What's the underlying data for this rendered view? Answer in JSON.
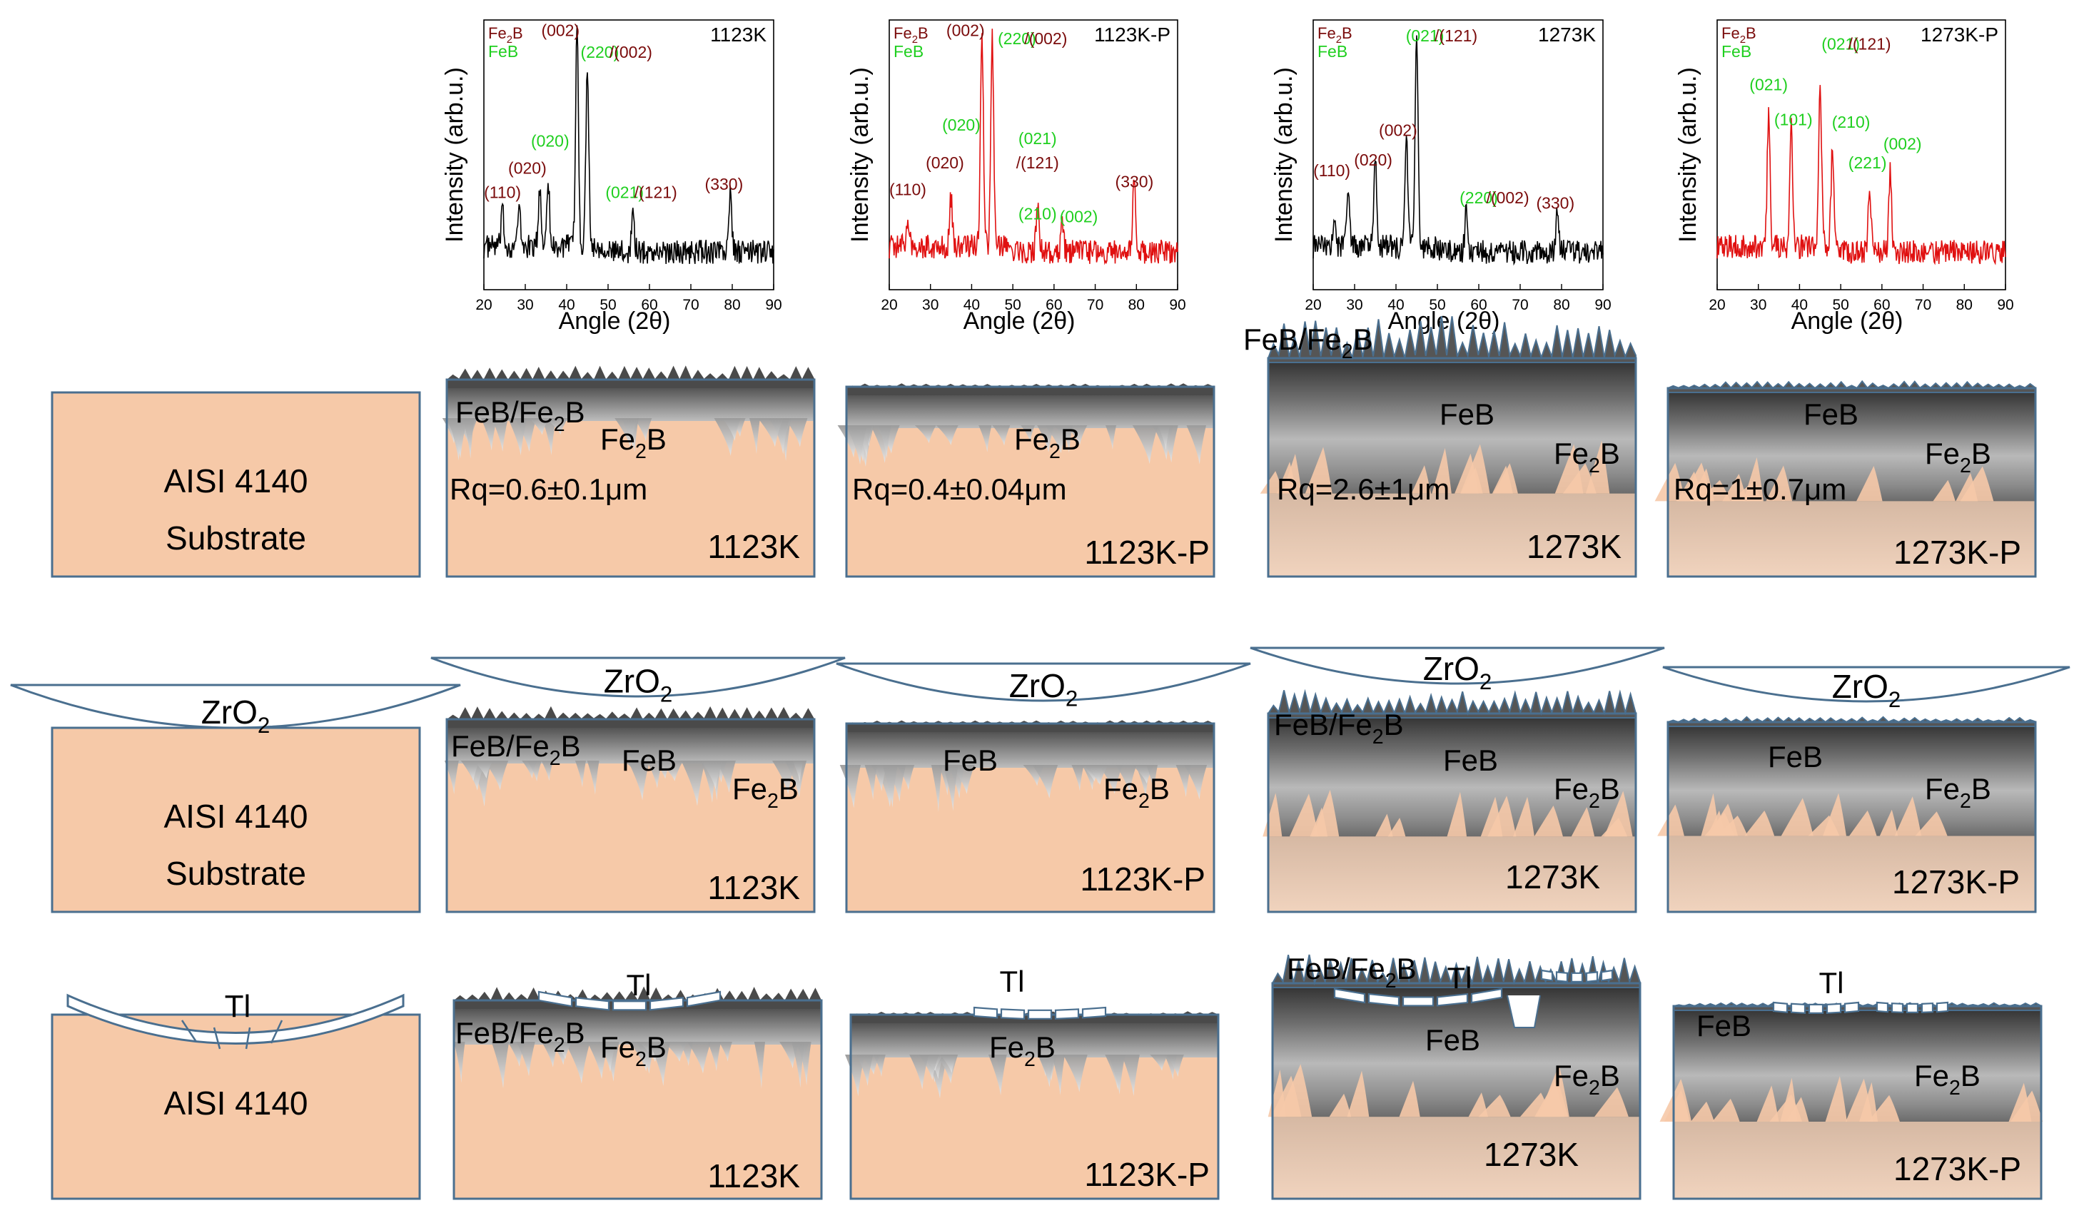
{
  "xrd": {
    "axis_title_y": "Intensity (arb.u.)",
    "axis_title_x": "Angle (2θ)",
    "x_ticks": [
      "20",
      "30",
      "40",
      "50",
      "60",
      "70",
      "80",
      "90"
    ],
    "legend": [
      "Fe₂B",
      "FeB"
    ],
    "colors": {
      "fe2b": "#7a0b0b",
      "feb": "#1fcf1f",
      "black_trace": "#000000",
      "red_trace": "#e01010"
    },
    "panels": [
      {
        "tag": "1123K",
        "trace_color": "#000000",
        "labels": [
          {
            "t": "(110)",
            "c": "fe2b",
            "a": 24.5,
            "yf": 0.66
          },
          {
            "t": "(020)",
            "c": "fe2b",
            "a": 30.5,
            "yf": 0.57
          },
          {
            "t": "(020)",
            "c": "feb",
            "a": 36.0,
            "yf": 0.47
          },
          {
            "t": "(002)",
            "c": "fe2b",
            "a": 38.5,
            "yf": 0.06
          },
          {
            "t": "(220)",
            "c": "feb",
            "a": 48.0,
            "yf": 0.14
          },
          {
            "t": "/(002)",
            "c": "fe2b",
            "a": 55.5,
            "yf": 0.14
          },
          {
            "t": "(021)",
            "c": "feb",
            "a": 54.0,
            "yf": 0.66
          },
          {
            "t": "/(121)",
            "c": "fe2b",
            "a": 61.5,
            "yf": 0.66
          },
          {
            "t": "(330)",
            "c": "fe2b",
            "a": 78.0,
            "yf": 0.63
          }
        ]
      },
      {
        "tag": "1123K-P",
        "trace_color": "#e01010",
        "labels": [
          {
            "t": "(110)",
            "c": "fe2b",
            "a": 24.5,
            "yf": 0.65
          },
          {
            "t": "(020)",
            "c": "fe2b",
            "a": 33.5,
            "yf": 0.55
          },
          {
            "t": "(020)",
            "c": "feb",
            "a": 37.5,
            "yf": 0.41
          },
          {
            "t": "(002)",
            "c": "fe2b",
            "a": 38.5,
            "yf": 0.06
          },
          {
            "t": "(220)",
            "c": "feb",
            "a": 51.0,
            "yf": 0.09
          },
          {
            "t": "/(002)",
            "c": "fe2b",
            "a": 58.0,
            "yf": 0.09
          },
          {
            "t": "(021)",
            "c": "feb",
            "a": 56.0,
            "yf": 0.46
          },
          {
            "t": "/(121)",
            "c": "fe2b",
            "a": 56.0,
            "yf": 0.55
          },
          {
            "t": "(210)",
            "c": "feb",
            "a": 56.0,
            "yf": 0.74
          },
          {
            "t": "(002)",
            "c": "feb",
            "a": 66.0,
            "yf": 0.75
          },
          {
            "t": "(330)",
            "c": "fe2b",
            "a": 79.5,
            "yf": 0.62
          }
        ]
      },
      {
        "tag": "1273K",
        "trace_color": "#000000",
        "labels": [
          {
            "t": "(110)",
            "c": "fe2b",
            "a": 24.5,
            "yf": 0.58
          },
          {
            "t": "(020)",
            "c": "fe2b",
            "a": 34.5,
            "yf": 0.54
          },
          {
            "t": "(002)",
            "c": "fe2b",
            "a": 40.5,
            "yf": 0.43
          },
          {
            "t": "(021)",
            "c": "feb",
            "a": 47.0,
            "yf": 0.08
          },
          {
            "t": "/(121)",
            "c": "fe2b",
            "a": 54.5,
            "yf": 0.08
          },
          {
            "t": "(220)",
            "c": "feb",
            "a": 60.0,
            "yf": 0.68
          },
          {
            "t": "/(002)",
            "c": "fe2b",
            "a": 67.0,
            "yf": 0.68
          },
          {
            "t": "(330)",
            "c": "fe2b",
            "a": 78.5,
            "yf": 0.7
          }
        ]
      },
      {
        "tag": "1273K-P",
        "trace_color": "#e01010",
        "labels": [
          {
            "t": "(021)",
            "c": "feb",
            "a": 32.5,
            "yf": 0.26
          },
          {
            "t": "(101)",
            "c": "feb",
            "a": 38.5,
            "yf": 0.39
          },
          {
            "t": "(021)",
            "c": "feb",
            "a": 50.0,
            "yf": 0.11
          },
          {
            "t": "/(121)",
            "c": "fe2b",
            "a": 57.0,
            "yf": 0.11
          },
          {
            "t": "(210)",
            "c": "feb",
            "a": 52.5,
            "yf": 0.4
          },
          {
            "t": "(221)",
            "c": "feb",
            "a": 56.5,
            "yf": 0.55
          },
          {
            "t": "(002)",
            "c": "feb",
            "a": 65.0,
            "yf": 0.48
          }
        ]
      }
    ]
  },
  "row1": {
    "substrate": {
      "line1": "AISI 4140",
      "line2": "Substrate"
    },
    "panels": [
      {
        "tag": "1123K",
        "top_label": "FeB/Fe₂B",
        "mid_label": "Fe₂B",
        "rq": "Rq=0.6±0.1μm"
      },
      {
        "tag": "1123K-P",
        "mid_label": "Fe₂B",
        "rq": "Rq=0.4±0.04μm"
      },
      {
        "tag": "1273K",
        "top_label": "FeB/Fe₂B",
        "feb_label": "FeB",
        "mid_label": "Fe₂B",
        "rq": "Rq=2.6±1μm"
      },
      {
        "tag": "1273K-P",
        "feb_label": "FeB",
        "mid_label": "Fe₂B",
        "rq": "Rq=1±0.7μm"
      }
    ]
  },
  "row2": {
    "ball": "ZrO₂",
    "substrate": {
      "line1": "AISI 4140",
      "line2": "Substrate"
    },
    "panels": [
      {
        "tag": "1123K",
        "top_label": "FeB/Fe₂B",
        "feb_label": "FeB",
        "mid_label": "Fe₂B"
      },
      {
        "tag": "1123K-P",
        "feb_label": "FeB",
        "mid_label": "Fe₂B"
      },
      {
        "tag": "1273K",
        "top_label": "FeB/Fe₂B",
        "feb_label": "FeB",
        "mid_label": "Fe₂B"
      },
      {
        "tag": "1273K-P",
        "feb_label": "FeB",
        "mid_label": "Fe₂B"
      }
    ]
  },
  "row3": {
    "tribolayer": "Tl",
    "substrate": {
      "line1": "AISI 4140"
    },
    "panels": [
      {
        "tag": "1123K",
        "top_label": "FeB/Fe₂B",
        "mid_label": "Fe₂B"
      },
      {
        "tag": "1123K-P",
        "mid_label": "Fe₂B"
      },
      {
        "tag": "1273K",
        "top_label": "FeB/Fe₂B",
        "feb_label": "FeB",
        "mid_label": "Fe₂B"
      },
      {
        "tag": "1273K-P",
        "feb_label": "FeB",
        "mid_label": "Fe₂B"
      }
    ]
  },
  "colors": {
    "substrate": "#f6c9a8",
    "outline": "#4a6f8f",
    "coat_dark": "#4a4a4a"
  }
}
